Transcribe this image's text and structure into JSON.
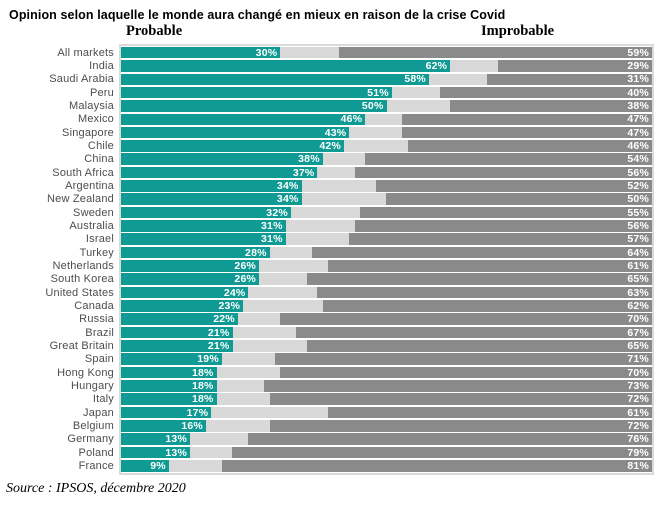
{
  "title": "Opinion selon laquelle le monde aura changé en mieux en raison de la crise Covid",
  "source": "Source : IPSOS, décembre 2020",
  "colors": {
    "probable_bar": "#0F9A93",
    "improbable_bar": "#8A8A8A",
    "neutral_gap": "#D8D8D8",
    "country_label": "#4D4D4D",
    "plot_border": "#DADADA"
  },
  "chart_data": {
    "type": "bar",
    "orientation": "horizontal",
    "stacked": true,
    "unit": "%",
    "axis_range": [
      0,
      100
    ],
    "grid": false,
    "legend_position": "top",
    "headers": {
      "left": "Probable",
      "right": "Improbable"
    },
    "categories": [
      "All markets",
      "India",
      "Saudi Arabia",
      "Peru",
      "Malaysia",
      "Mexico",
      "Singapore",
      "Chile",
      "China",
      "South Africa",
      "Argentina",
      "New Zealand",
      "Sweden",
      "Australia",
      "Israel",
      "Turkey",
      "Netherlands",
      "South Korea",
      "United States",
      "Canada",
      "Russia",
      "Brazil",
      "Great Britain",
      "Spain",
      "Hong Kong",
      "Hungary",
      "Italy",
      "Japan",
      "Belgium",
      "Germany",
      "Poland",
      "France"
    ],
    "series": [
      {
        "name": "Probable",
        "values": [
          30,
          62,
          58,
          51,
          50,
          46,
          43,
          42,
          38,
          37,
          34,
          34,
          32,
          31,
          31,
          28,
          26,
          26,
          24,
          23,
          22,
          21,
          21,
          19,
          18,
          18,
          18,
          17,
          16,
          13,
          13,
          9
        ]
      },
      {
        "name": "Improbable",
        "values": [
          59,
          29,
          31,
          40,
          38,
          47,
          47,
          46,
          54,
          56,
          52,
          50,
          55,
          56,
          57,
          64,
          61,
          65,
          63,
          62,
          70,
          67,
          65,
          71,
          70,
          73,
          72,
          61,
          72,
          76,
          79,
          81
        ]
      }
    ]
  }
}
